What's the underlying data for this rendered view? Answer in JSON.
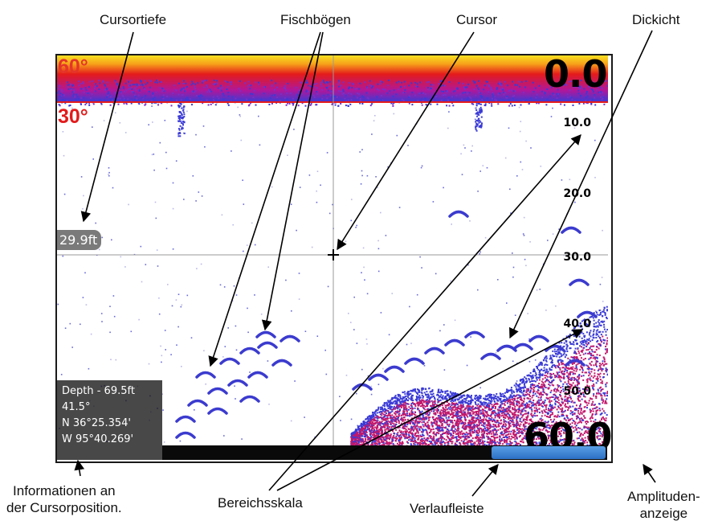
{
  "labels": {
    "cursortiefe": "Cursortiefe",
    "fischboegen": "Fischbögen",
    "cursor": "Cursor",
    "dickicht": "Dickicht",
    "info_line1": "Informationen an",
    "info_line2": "der Cursorposition.",
    "bereichsskala": "Bereichsskala",
    "verlaufleiste": "Verlaufleiste",
    "amplituden_line1": "Amplituden-",
    "amplituden_line2": "anzeige"
  },
  "screen": {
    "top_temp": "60°",
    "second_temp": "30°",
    "top_range": "0.0",
    "bottom_range": "60.0",
    "depth_scale": [
      "10.0",
      "20.0",
      "30.0",
      "40.0",
      "50.0"
    ],
    "cursor_depth": "29.9ft",
    "cursor_info": {
      "depth": "Depth - 69.5ft",
      "temp": "41.5°",
      "lat": "N  36°25.354'",
      "lon": "W  95°40.269'"
    }
  },
  "colors": {
    "surface_red": "#e41b1b",
    "surface_yellow": "#ffd200",
    "noise_blue": "#3a3ad6",
    "fish_blue": "#3b3bcf",
    "thicket_red": "#c2186b",
    "history_blue": "#3a82d6"
  }
}
